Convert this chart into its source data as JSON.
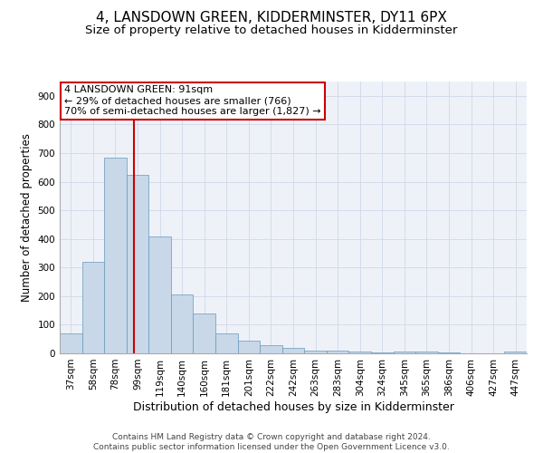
{
  "title": "4, LANSDOWN GREEN, KIDDERMINSTER, DY11 6PX",
  "subtitle": "Size of property relative to detached houses in Kidderminster",
  "xlabel": "Distribution of detached houses by size in Kidderminster",
  "ylabel": "Number of detached properties",
  "footer_line1": "Contains HM Land Registry data © Crown copyright and database right 2024.",
  "footer_line2": "Contains public sector information licensed under the Open Government Licence v3.0.",
  "categories": [
    "37sqm",
    "58sqm",
    "78sqm",
    "99sqm",
    "119sqm",
    "140sqm",
    "160sqm",
    "181sqm",
    "201sqm",
    "222sqm",
    "242sqm",
    "263sqm",
    "283sqm",
    "304sqm",
    "324sqm",
    "345sqm",
    "365sqm",
    "386sqm",
    "406sqm",
    "427sqm",
    "447sqm"
  ],
  "values": [
    70,
    320,
    685,
    625,
    410,
    205,
    140,
    70,
    45,
    30,
    20,
    10,
    8,
    5,
    3,
    7,
    5,
    3,
    1,
    1,
    5
  ],
  "bar_color": "#c8d8e8",
  "bar_edge_color": "#6699bb",
  "ylim": [
    0,
    950
  ],
  "yticks": [
    0,
    100,
    200,
    300,
    400,
    500,
    600,
    700,
    800,
    900
  ],
  "red_line_x": 2.82,
  "annotation_text_line1": "4 LANSDOWN GREEN: 91sqm",
  "annotation_text_line2": "← 29% of detached houses are smaller (766)",
  "annotation_text_line3": "70% of semi-detached houses are larger (1,827) →",
  "annotation_box_color": "#ffffff",
  "annotation_box_edge": "#cc0000",
  "red_line_color": "#cc0000",
  "grid_color": "#d0d8e8",
  "background_color": "#eef2f8",
  "title_fontsize": 11,
  "subtitle_fontsize": 9.5,
  "tick_fontsize": 7.5,
  "ylabel_fontsize": 8.5,
  "xlabel_fontsize": 9,
  "annotation_fontsize": 8,
  "footer_fontsize": 6.5
}
